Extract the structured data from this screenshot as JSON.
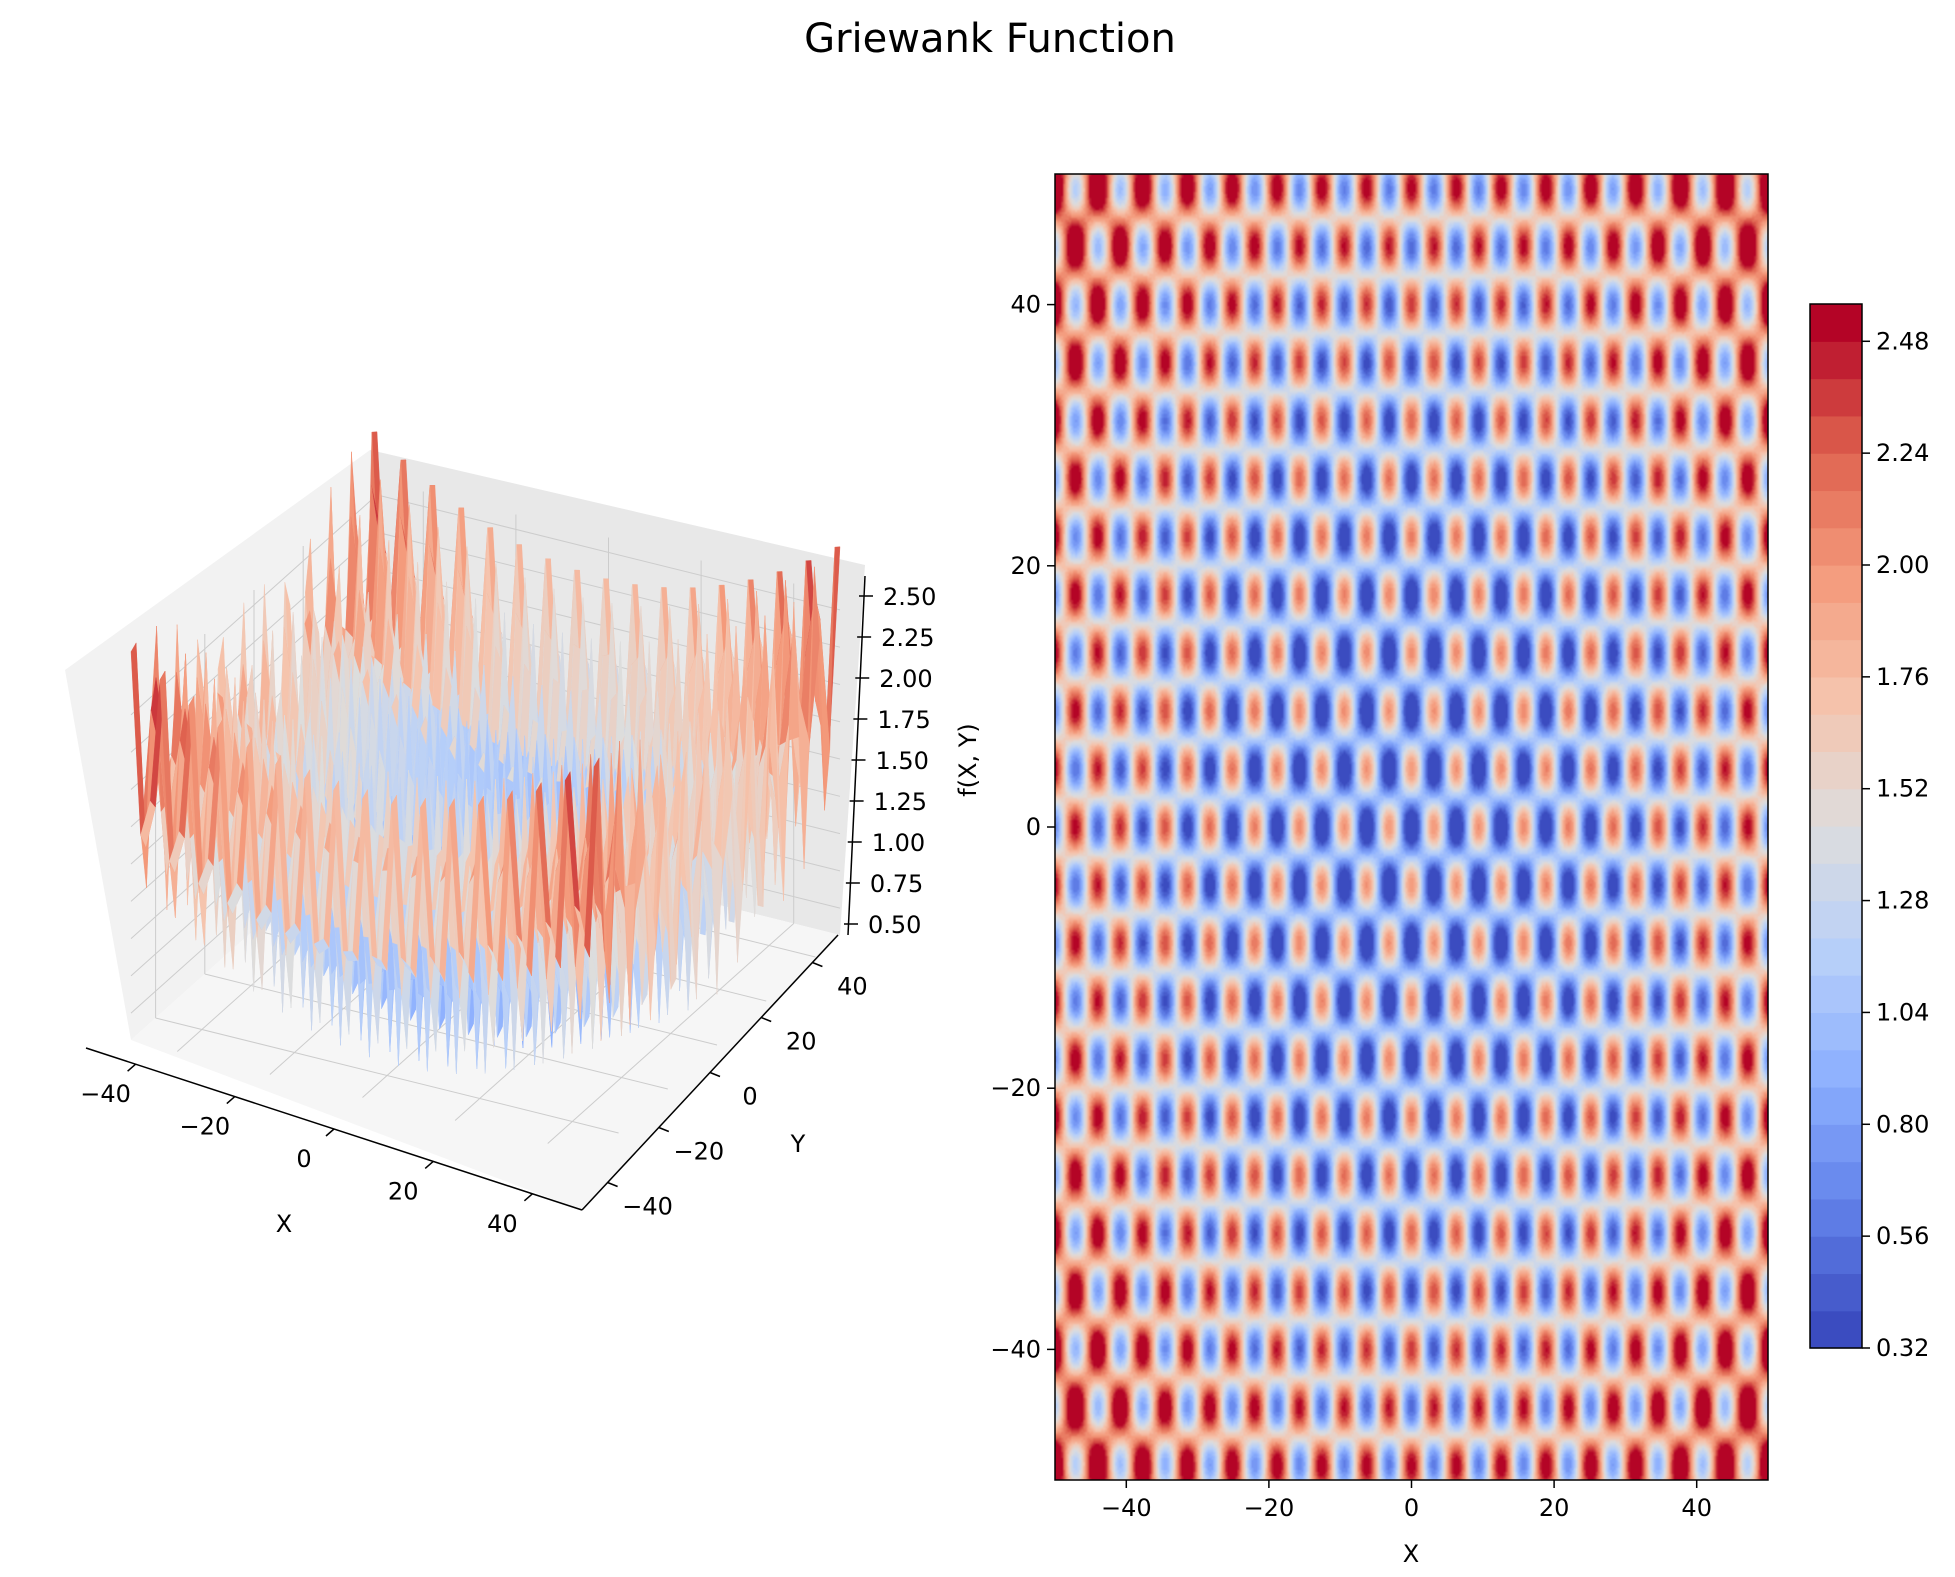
{
  "figure": {
    "title": "Griewank Function"
  },
  "chart_data": [
    {
      "type": "surface3d",
      "function": "griewank",
      "xlabel": "X",
      "ylabel": "Y",
      "zlabel": "f(X, Y)",
      "xlim": [
        -50,
        50
      ],
      "ylim": [
        -50,
        50
      ],
      "zlim": [
        0.32,
        2.6
      ],
      "xticks": [
        "−40",
        "−20",
        "0",
        "20",
        "40"
      ],
      "yticks": [
        "−40",
        "−20",
        "0",
        "20",
        "40"
      ],
      "zticks": [
        "0.50",
        "0.75",
        "1.00",
        "1.25",
        "1.50",
        "1.75",
        "2.00",
        "2.25",
        "2.50"
      ],
      "colormap": "coolwarm",
      "grid": true
    },
    {
      "type": "heatmap",
      "function": "griewank",
      "xlabel": "X",
      "ylabel": "Y",
      "xlim": [
        -50,
        50
      ],
      "ylim": [
        -50,
        50
      ],
      "xticks": [
        "−40",
        "−20",
        "0",
        "20",
        "40"
      ],
      "yticks": [
        "−40",
        "−20",
        "0",
        "20",
        "40"
      ],
      "colormap": "coolwarm",
      "colorbar": {
        "range": [
          0.32,
          2.56
        ],
        "ticks": [
          "0.32",
          "0.56",
          "0.80",
          "1.04",
          "1.28",
          "1.52",
          "1.76",
          "2.00",
          "2.24",
          "2.48"
        ]
      },
      "grid": false
    }
  ]
}
